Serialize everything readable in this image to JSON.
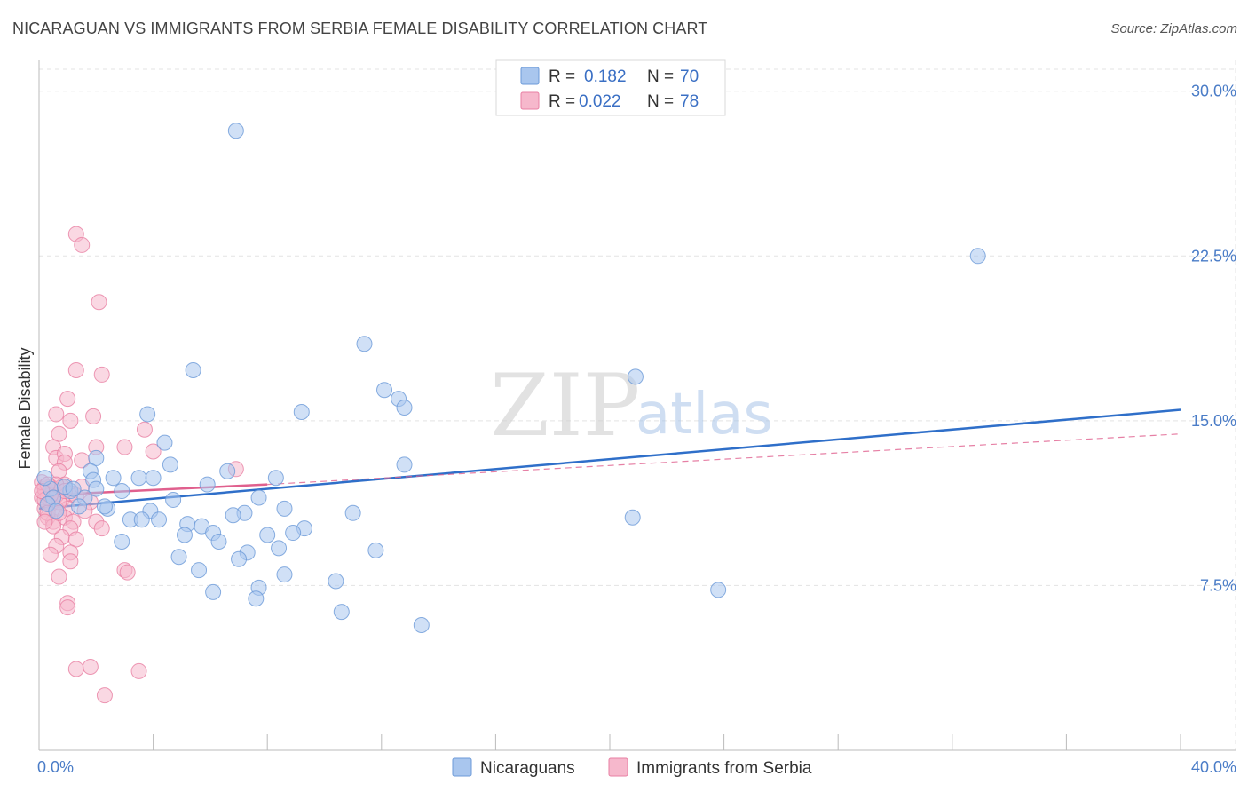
{
  "title": "NICARAGUAN VS IMMIGRANTS FROM SERBIA FEMALE DISABILITY CORRELATION CHART",
  "source": "Source: ZipAtlas.com",
  "watermark": {
    "zip": "ZIP",
    "atlas": "atlas"
  },
  "colors": {
    "blue_fill": "#a9c6ee",
    "blue_stroke": "#6c9ad8",
    "blue_line": "#2f6fc9",
    "pink_fill": "#f6b8cc",
    "pink_stroke": "#e87fa3",
    "pink_line": "#e0608e",
    "grid": "#e3e3e3",
    "axis_label": "#4a7cc7"
  },
  "legend": {
    "rows": [
      {
        "r_label": "R =",
        "r_value": "0.182",
        "n_label": "N =",
        "n_value": "70"
      },
      {
        "r_label": "R =",
        "r_value": "0.022",
        "n_label": "N =",
        "n_value": "78"
      }
    ]
  },
  "bottom_legend": [
    "Nicaraguans",
    "Immigrants from Serbia"
  ],
  "chart_data": {
    "type": "scatter",
    "title": "NICARAGUAN VS IMMIGRANTS FROM SERBIA FEMALE DISABILITY CORRELATION CHART",
    "xlabel": "",
    "ylabel": "Female Disability",
    "xlim": [
      0,
      40
    ],
    "ylim": [
      0,
      31
    ],
    "x_tick_labels": [
      "0.0%",
      "40.0%"
    ],
    "y_ticks": [
      7.5,
      15.0,
      22.5,
      30.0
    ],
    "y_tick_labels": [
      "7.5%",
      "15.0%",
      "22.5%",
      "30.0%"
    ],
    "grid": true,
    "series": [
      {
        "name": "Nicaraguans",
        "R": 0.182,
        "N": 70,
        "trend": {
          "x0": 0,
          "y0": 11.0,
          "x1": 40,
          "y1": 15.5
        },
        "points": [
          [
            6.9,
            28.2
          ],
          [
            32.9,
            22.5
          ],
          [
            11.4,
            18.5
          ],
          [
            5.4,
            17.3
          ],
          [
            20.9,
            17.0
          ],
          [
            12.1,
            16.4
          ],
          [
            12.6,
            16.0
          ],
          [
            12.8,
            15.6
          ],
          [
            9.2,
            15.4
          ],
          [
            3.8,
            15.3
          ],
          [
            4.4,
            14.0
          ],
          [
            2.0,
            13.3
          ],
          [
            4.6,
            13.0
          ],
          [
            12.8,
            13.0
          ],
          [
            1.8,
            12.7
          ],
          [
            6.6,
            12.7
          ],
          [
            1.9,
            12.3
          ],
          [
            2.6,
            12.4
          ],
          [
            3.5,
            12.4
          ],
          [
            4.0,
            12.4
          ],
          [
            8.3,
            12.4
          ],
          [
            5.9,
            12.1
          ],
          [
            2.9,
            11.8
          ],
          [
            2.0,
            11.9
          ],
          [
            1.1,
            11.8
          ],
          [
            1.6,
            11.5
          ],
          [
            2.4,
            11.0
          ],
          [
            7.7,
            11.5
          ],
          [
            4.7,
            11.4
          ],
          [
            1.4,
            11.1
          ],
          [
            2.3,
            11.1
          ],
          [
            3.9,
            10.9
          ],
          [
            8.6,
            11.0
          ],
          [
            11.0,
            10.8
          ],
          [
            7.2,
            10.8
          ],
          [
            6.8,
            10.7
          ],
          [
            3.2,
            10.5
          ],
          [
            3.6,
            10.5
          ],
          [
            4.2,
            10.5
          ],
          [
            20.8,
            10.6
          ],
          [
            5.2,
            10.3
          ],
          [
            5.7,
            10.2
          ],
          [
            9.3,
            10.1
          ],
          [
            8.9,
            9.9
          ],
          [
            6.1,
            9.9
          ],
          [
            5.1,
            9.8
          ],
          [
            8.0,
            9.8
          ],
          [
            2.9,
            9.5
          ],
          [
            6.3,
            9.5
          ],
          [
            8.4,
            9.2
          ],
          [
            11.8,
            9.1
          ],
          [
            7.3,
            9.0
          ],
          [
            4.9,
            8.8
          ],
          [
            7.0,
            8.7
          ],
          [
            5.6,
            8.2
          ],
          [
            8.6,
            8.0
          ],
          [
            10.4,
            7.7
          ],
          [
            7.7,
            7.4
          ],
          [
            23.8,
            7.3
          ],
          [
            6.1,
            7.2
          ],
          [
            7.6,
            6.9
          ],
          [
            10.6,
            6.3
          ],
          [
            13.4,
            5.7
          ],
          [
            0.4,
            11.9
          ],
          [
            0.9,
            12.0
          ],
          [
            0.5,
            11.5
          ],
          [
            1.2,
            11.9
          ],
          [
            0.3,
            11.2
          ],
          [
            0.6,
            10.9
          ],
          [
            0.2,
            12.4
          ]
        ]
      },
      {
        "name": "Immigrants from Serbia",
        "R": 0.022,
        "N": 78,
        "trend": {
          "x0": 0,
          "y0": 11.6,
          "x1": 8,
          "y1": 12.1
        },
        "trend_extension": {
          "x0": 8,
          "y0": 12.1,
          "x1": 40,
          "y1": 14.4
        },
        "points": [
          [
            1.3,
            23.5
          ],
          [
            1.5,
            23.0
          ],
          [
            2.1,
            20.4
          ],
          [
            1.3,
            17.3
          ],
          [
            2.2,
            17.1
          ],
          [
            1.0,
            16.0
          ],
          [
            0.6,
            15.3
          ],
          [
            1.9,
            15.2
          ],
          [
            1.1,
            15.0
          ],
          [
            0.7,
            14.4
          ],
          [
            3.7,
            14.6
          ],
          [
            2.0,
            13.8
          ],
          [
            0.5,
            13.8
          ],
          [
            0.6,
            13.3
          ],
          [
            0.9,
            13.5
          ],
          [
            1.5,
            13.2
          ],
          [
            3.0,
            13.8
          ],
          [
            4.0,
            13.6
          ],
          [
            6.9,
            12.8
          ],
          [
            0.9,
            13.1
          ],
          [
            0.7,
            12.7
          ],
          [
            0.2,
            12.0
          ],
          [
            0.4,
            12.0
          ],
          [
            0.9,
            12.1
          ],
          [
            0.5,
            11.6
          ],
          [
            0.4,
            11.3
          ],
          [
            0.2,
            11.0
          ],
          [
            1.1,
            11.7
          ],
          [
            0.8,
            11.4
          ],
          [
            1.0,
            11.0
          ],
          [
            1.3,
            11.6
          ],
          [
            1.8,
            11.3
          ],
          [
            0.6,
            11.0
          ],
          [
            0.3,
            10.6
          ],
          [
            0.5,
            10.4
          ],
          [
            0.9,
            10.6
          ],
          [
            1.2,
            10.4
          ],
          [
            1.1,
            10.1
          ],
          [
            0.8,
            9.7
          ],
          [
            1.3,
            9.6
          ],
          [
            0.6,
            9.3
          ],
          [
            1.1,
            9.0
          ],
          [
            0.4,
            8.9
          ],
          [
            1.1,
            8.6
          ],
          [
            0.7,
            7.9
          ],
          [
            3.0,
            8.2
          ],
          [
            3.1,
            8.1
          ],
          [
            2.0,
            10.4
          ],
          [
            2.2,
            10.1
          ],
          [
            1.6,
            10.9
          ],
          [
            1.0,
            6.7
          ],
          [
            1.0,
            6.5
          ],
          [
            1.3,
            3.7
          ],
          [
            1.8,
            3.8
          ],
          [
            3.5,
            3.6
          ],
          [
            2.3,
            2.5
          ],
          [
            0.2,
            11.7
          ],
          [
            0.3,
            11.8
          ],
          [
            0.1,
            11.5
          ],
          [
            0.2,
            11.9
          ],
          [
            0.4,
            11.2
          ],
          [
            0.1,
            12.2
          ],
          [
            0.3,
            11.5
          ],
          [
            0.5,
            11.9
          ],
          [
            0.6,
            11.6
          ],
          [
            0.7,
            11.3
          ],
          [
            0.8,
            12.0
          ],
          [
            0.2,
            11.4
          ],
          [
            0.3,
            10.8
          ],
          [
            0.5,
            10.2
          ],
          [
            0.4,
            11.6
          ],
          [
            0.6,
            12.1
          ],
          [
            0.7,
            10.8
          ],
          [
            0.9,
            11.8
          ],
          [
            0.2,
            10.4
          ],
          [
            1.5,
            12.0
          ],
          [
            0.3,
            12.1
          ],
          [
            0.1,
            11.8
          ]
        ]
      }
    ]
  }
}
